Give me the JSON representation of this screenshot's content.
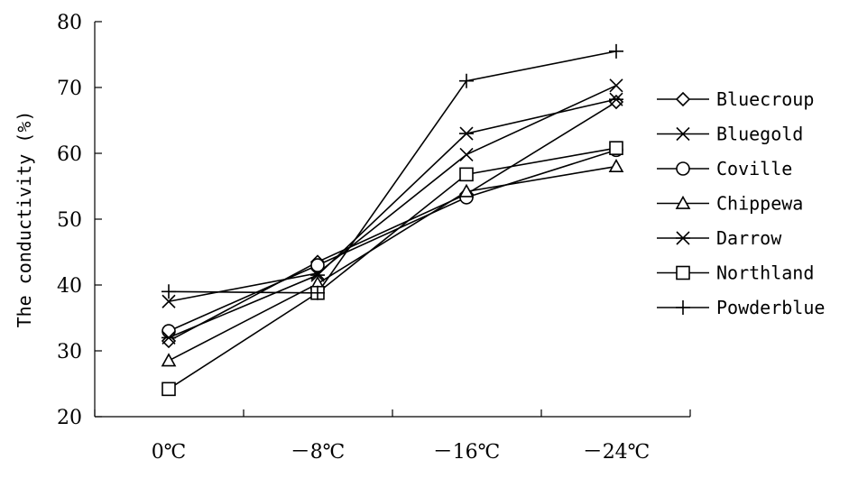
{
  "chart_data": {
    "type": "line",
    "ylabel": "The conductivity (%)",
    "xlabel": "",
    "categories": [
      "0℃",
      "－8℃",
      "－16℃",
      "－24℃"
    ],
    "ylim": [
      20,
      80
    ],
    "yticks": [
      20,
      30,
      40,
      50,
      60,
      70,
      80
    ],
    "grid": false,
    "legend_position": "right",
    "series": [
      {
        "name": "Bluecroup",
        "marker": "diamond",
        "values": [
          31.5,
          43.5,
          53.8,
          67.8
        ]
      },
      {
        "name": "Bluegold",
        "marker": "x",
        "values": [
          37.5,
          41.8,
          59.8,
          70.3
        ]
      },
      {
        "name": "Coville",
        "marker": "circle",
        "values": [
          33.0,
          43.0,
          53.3,
          60.5
        ]
      },
      {
        "name": "Chippewa",
        "marker": "triangle",
        "values": [
          28.5,
          40.2,
          54.2,
          58.0
        ]
      },
      {
        "name": "Darrow",
        "marker": "asterisk",
        "values": [
          32.0,
          41.5,
          63.0,
          68.2
        ]
      },
      {
        "name": "Northland",
        "marker": "square",
        "values": [
          24.2,
          38.8,
          56.8,
          60.8
        ]
      },
      {
        "name": "Powderblue",
        "marker": "plus",
        "values": [
          39.0,
          38.8,
          71.0,
          75.5
        ]
      }
    ]
  }
}
